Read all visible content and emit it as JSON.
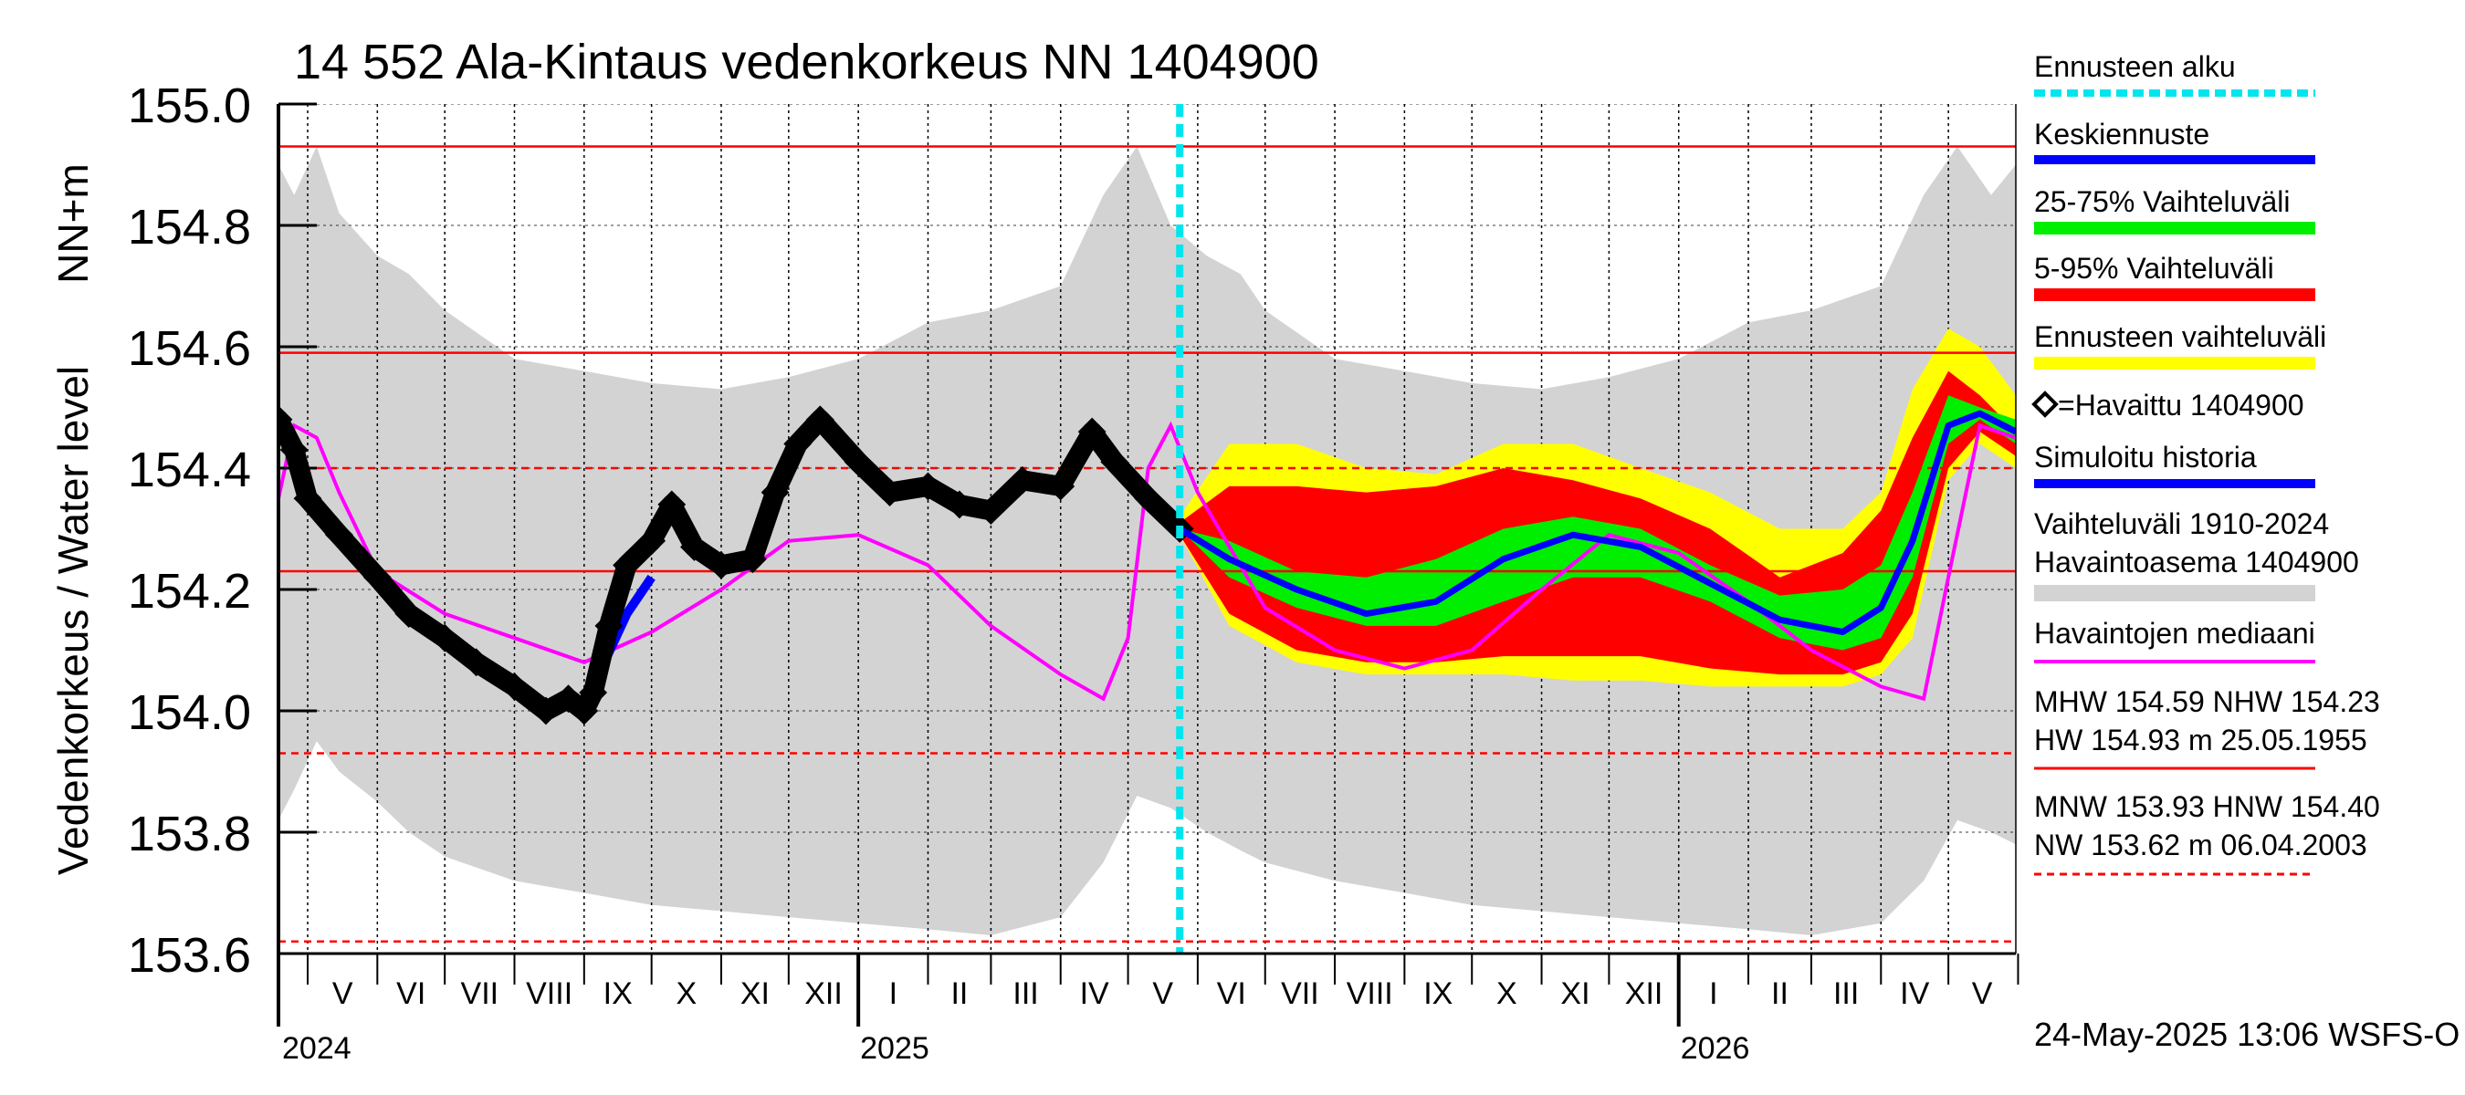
{
  "chart_data": {
    "type": "line",
    "title": "14 552 Ala-Kintaus vedenkorkeus NN 1404900",
    "ylabel_main": "Vedenkorkeus / Water level",
    "ylabel_unit": "NN+m",
    "ylim": [
      153.6,
      155.0
    ],
    "yticks": [
      153.6,
      153.8,
      154.0,
      154.2,
      154.4,
      154.6,
      154.8,
      155.0
    ],
    "ytick_labels": [
      "153.6",
      "153.8",
      "154.0",
      "154.2",
      "154.4",
      "154.6",
      "154.8",
      "155.0"
    ],
    "xlim": [
      "2024-04-18",
      "2026-05-31"
    ],
    "month_labels": [
      "V",
      "VI",
      "VII",
      "VIII",
      "IX",
      "X",
      "XI",
      "XII",
      "I",
      "II",
      "III",
      "IV",
      "V",
      "VI",
      "VII",
      "VIII",
      "IX",
      "X",
      "XI",
      "XII",
      "I",
      "II",
      "III",
      "IV",
      "V"
    ],
    "month_starts": [
      "2024-05-01",
      "2024-06-01",
      "2024-07-01",
      "2024-08-01",
      "2024-09-01",
      "2024-10-01",
      "2024-11-01",
      "2024-12-01",
      "2025-01-01",
      "2025-02-01",
      "2025-03-01",
      "2025-04-01",
      "2025-05-01",
      "2025-06-01",
      "2025-07-01",
      "2025-08-01",
      "2025-09-01",
      "2025-10-01",
      "2025-11-01",
      "2025-12-01",
      "2026-01-01",
      "2026-02-01",
      "2026-03-01",
      "2026-04-01",
      "2026-05-01",
      "2026-06-01"
    ],
    "year_labels": [
      {
        "label": "2024",
        "date": "2024-04-18"
      },
      {
        "label": "2025",
        "date": "2025-01-01"
      },
      {
        "label": "2026",
        "date": "2026-01-01"
      }
    ],
    "grid": true,
    "reference_lines": [
      {
        "name": "HW",
        "value": 154.93,
        "style": "solid"
      },
      {
        "name": "MHW",
        "value": 154.59,
        "style": "solid"
      },
      {
        "name": "HNW",
        "value": 154.4,
        "style": "dashed"
      },
      {
        "name": "NHW",
        "value": 154.23,
        "style": "solid"
      },
      {
        "name": "MNW",
        "value": 153.93,
        "style": "dashed"
      },
      {
        "name": "NW",
        "value": 153.62,
        "style": "dashed"
      }
    ],
    "forecast_start": "2025-05-24",
    "history_band": {
      "dates": [
        "2024-04-18",
        "2024-04-25",
        "2024-05-05",
        "2024-05-15",
        "2024-06-01",
        "2024-06-15",
        "2024-07-01",
        "2024-08-01",
        "2024-09-01",
        "2024-10-01",
        "2024-11-01",
        "2024-12-01",
        "2025-01-01",
        "2025-02-01",
        "2025-03-01",
        "2025-04-01",
        "2025-04-20",
        "2025-05-05",
        "2025-05-20",
        "2025-06-05",
        "2025-06-20",
        "2025-07-01",
        "2025-08-01",
        "2025-09-01",
        "2025-10-01",
        "2025-11-01",
        "2025-12-01",
        "2026-01-01",
        "2026-02-01",
        "2026-03-01",
        "2026-04-01",
        "2026-04-20",
        "2026-05-05",
        "2026-05-20",
        "2026-05-31"
      ],
      "upper": [
        154.9,
        154.85,
        154.93,
        154.82,
        154.75,
        154.72,
        154.66,
        154.58,
        154.56,
        154.54,
        154.53,
        154.55,
        154.58,
        154.64,
        154.66,
        154.7,
        154.85,
        154.93,
        154.8,
        154.75,
        154.72,
        154.66,
        154.58,
        154.56,
        154.54,
        154.53,
        154.55,
        154.58,
        154.64,
        154.66,
        154.7,
        154.85,
        154.93,
        154.85,
        154.9
      ],
      "lower": [
        153.82,
        153.87,
        153.95,
        153.9,
        153.85,
        153.8,
        153.76,
        153.72,
        153.7,
        153.68,
        153.67,
        153.66,
        153.65,
        153.64,
        153.63,
        153.66,
        153.75,
        153.86,
        153.84,
        153.8,
        153.77,
        153.75,
        153.72,
        153.7,
        153.68,
        153.67,
        153.66,
        153.65,
        153.64,
        153.63,
        153.65,
        153.72,
        153.82,
        153.8,
        153.78
      ]
    },
    "series": [
      {
        "name": "Havaittu 1404900",
        "color": "#000000",
        "dates": [
          "2024-04-18",
          "2024-04-25",
          "2024-05-01",
          "2024-05-15",
          "2024-06-01",
          "2024-06-15",
          "2024-07-01",
          "2024-07-15",
          "2024-08-01",
          "2024-08-15",
          "2024-08-25",
          "2024-09-01",
          "2024-09-05",
          "2024-09-12",
          "2024-09-20",
          "2024-10-01",
          "2024-10-10",
          "2024-10-20",
          "2024-11-01",
          "2024-11-15",
          "2024-11-25",
          "2024-12-05",
          "2024-12-15",
          "2025-01-01",
          "2025-01-15",
          "2025-02-01",
          "2025-02-15",
          "2025-03-01",
          "2025-03-15",
          "2025-04-01",
          "2025-04-15",
          "2025-04-25",
          "2025-05-10",
          "2025-05-24"
        ],
        "values": [
          154.48,
          154.43,
          154.35,
          154.29,
          154.22,
          154.16,
          154.12,
          154.08,
          154.04,
          154.0,
          154.02,
          154.0,
          154.03,
          154.14,
          154.24,
          154.28,
          154.34,
          154.27,
          154.24,
          154.25,
          154.36,
          154.44,
          154.48,
          154.41,
          154.36,
          154.37,
          154.34,
          154.33,
          154.38,
          154.37,
          154.46,
          154.41,
          154.35,
          154.3
        ]
      },
      {
        "name": "Simuloitu historia",
        "color": "#0000ff",
        "dates": [
          "2024-09-01",
          "2024-09-10",
          "2024-09-20",
          "2024-10-01"
        ],
        "values": [
          154.0,
          154.08,
          154.16,
          154.22
        ]
      },
      {
        "name": "Havaintojen mediaani",
        "color": "#ff00ff",
        "dates": [
          "2024-04-18",
          "2024-04-25",
          "2024-05-05",
          "2024-05-15",
          "2024-06-01",
          "2024-07-01",
          "2024-08-01",
          "2024-09-01",
          "2024-10-01",
          "2024-11-01",
          "2024-12-01",
          "2025-01-01",
          "2025-02-01",
          "2025-03-01",
          "2025-04-01",
          "2025-04-20",
          "2025-05-01",
          "2025-05-10",
          "2025-05-20",
          "2025-06-01",
          "2025-07-01",
          "2025-08-01",
          "2025-09-01",
          "2025-10-01",
          "2025-11-01",
          "2025-12-01",
          "2026-01-01",
          "2026-02-01",
          "2026-03-01",
          "2026-04-01",
          "2026-04-20",
          "2026-05-01",
          "2026-05-15",
          "2026-05-31"
        ],
        "values": [
          154.35,
          154.47,
          154.45,
          154.36,
          154.23,
          154.16,
          154.12,
          154.08,
          154.13,
          154.2,
          154.28,
          154.29,
          154.24,
          154.14,
          154.06,
          154.02,
          154.12,
          154.4,
          154.47,
          154.36,
          154.17,
          154.1,
          154.07,
          154.1,
          154.2,
          154.29,
          154.26,
          154.18,
          154.1,
          154.04,
          154.02,
          154.22,
          154.47,
          154.45
        ]
      },
      {
        "name": "Keskiennuste",
        "color": "#0000ff",
        "dates": [
          "2025-05-24",
          "2025-06-15",
          "2025-07-15",
          "2025-08-15",
          "2025-09-15",
          "2025-10-15",
          "2025-11-15",
          "2025-12-15",
          "2026-01-15",
          "2026-02-15",
          "2026-03-15",
          "2026-04-01",
          "2026-04-15",
          "2026-05-01",
          "2026-05-15",
          "2026-05-31"
        ],
        "values": [
          154.3,
          154.25,
          154.2,
          154.16,
          154.18,
          154.25,
          154.29,
          154.27,
          154.21,
          154.15,
          154.13,
          154.17,
          154.28,
          154.47,
          154.49,
          154.46
        ]
      }
    ],
    "forecast_bands": {
      "dates": [
        "2025-05-24",
        "2025-06-15",
        "2025-07-15",
        "2025-08-15",
        "2025-09-15",
        "2025-10-15",
        "2025-11-15",
        "2025-12-15",
        "2026-01-15",
        "2026-02-15",
        "2026-03-15",
        "2026-04-01",
        "2026-04-15",
        "2026-05-01",
        "2026-05-15",
        "2026-05-31"
      ],
      "full_upper": [
        154.32,
        154.44,
        154.44,
        154.4,
        154.39,
        154.44,
        154.44,
        154.4,
        154.36,
        154.3,
        154.3,
        154.36,
        154.53,
        154.63,
        154.6,
        154.52
      ],
      "full_lower": [
        154.29,
        154.14,
        154.08,
        154.06,
        154.06,
        154.06,
        154.05,
        154.05,
        154.04,
        154.04,
        154.04,
        154.06,
        154.12,
        154.38,
        154.44,
        154.4
      ],
      "p95_upper": [
        154.31,
        154.37,
        154.37,
        154.36,
        154.37,
        154.4,
        154.38,
        154.35,
        154.3,
        154.22,
        154.26,
        154.33,
        154.45,
        154.56,
        154.52,
        154.46
      ],
      "p5_lower": [
        154.29,
        154.16,
        154.1,
        154.08,
        154.08,
        154.09,
        154.09,
        154.09,
        154.07,
        154.06,
        154.06,
        154.08,
        154.16,
        154.4,
        154.46,
        154.42
      ],
      "p75_upper": [
        154.3,
        154.28,
        154.23,
        154.22,
        154.25,
        154.3,
        154.32,
        154.3,
        154.24,
        154.19,
        154.2,
        154.24,
        154.36,
        154.52,
        154.5,
        154.48
      ],
      "p25_lower": [
        154.3,
        154.22,
        154.17,
        154.14,
        154.14,
        154.18,
        154.22,
        154.22,
        154.18,
        154.12,
        154.1,
        154.12,
        154.22,
        154.44,
        154.48,
        154.44
      ]
    },
    "band_colors": {
      "history": "#d3d3d3",
      "full": "#ffff00",
      "p5_95": "#ff0000",
      "p25_75": "#00ee00",
      "forecast_start": "#00e5ee",
      "median": "#ff00ff",
      "reference": "#ff0000"
    },
    "legend_position": "right",
    "legend": {
      "forecast_start": "Ennusteen alku",
      "mean_forecast": "Keskiennuste",
      "p25_75": "25-75% Vaihteluväli",
      "p5_95": "5-95% Vaihteluväli",
      "forecast_range": "Ennusteen vaihteluväli",
      "observed": "=Havaittu 1404900",
      "simulated": "Simuloitu historia",
      "history_range_1": "Vaihteluväli 1910-2024",
      "history_range_2": " Havaintoasema 1404900",
      "median": "Havaintojen mediaani",
      "stats_high_1": "MHW 154.59 NHW 154.23",
      "stats_high_2": "HW 154.93 m 25.05.1955",
      "stats_low_1": "MNW 153.93 HNW 154.40",
      "stats_low_2": "NW 153.62 m 06.04.2003"
    },
    "footer": "24-May-2025 13:06 WSFS-O"
  }
}
